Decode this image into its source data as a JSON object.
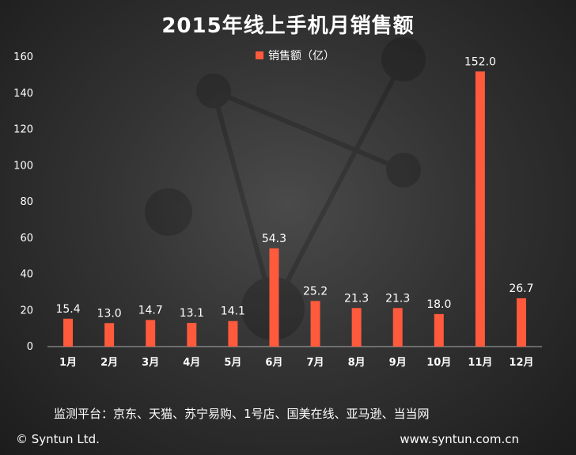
{
  "title": "2015年线上手机月销售额",
  "legend": {
    "label": "销售额（亿）"
  },
  "platforms_note": "监测平台：京东、天猫、苏宁易购、1号店、国美在线、亚马逊、当当网",
  "footer": {
    "copyright": "© Syntun Ltd.",
    "website": "www.syntun.com.cn"
  },
  "colors": {
    "bar": "#ff5a3c",
    "axis": "#aaaaaa"
  },
  "chart_data": {
    "type": "bar",
    "title": "2015年线上手机月销售额",
    "categories": [
      "1月",
      "2月",
      "3月",
      "4月",
      "5月",
      "6月",
      "7月",
      "8月",
      "9月",
      "10月",
      "11月",
      "12月"
    ],
    "series": [
      {
        "name": "销售额（亿）",
        "values": [
          15.4,
          13.0,
          14.7,
          13.1,
          14.1,
          54.3,
          25.2,
          21.3,
          21.3,
          18.0,
          152.0,
          26.7
        ]
      }
    ],
    "value_labels": [
      "15.4",
      "13.0",
      "14.7",
      "13.1",
      "14.1",
      "54.3",
      "25.2",
      "21.3",
      "21.3",
      "18.0",
      "152.0",
      "26.7"
    ],
    "ylim": [
      0,
      160
    ],
    "yticks": [
      "0",
      "20",
      "40",
      "60",
      "80",
      "100",
      "120",
      "140",
      "160"
    ],
    "grid": false,
    "legend_position": "top"
  }
}
